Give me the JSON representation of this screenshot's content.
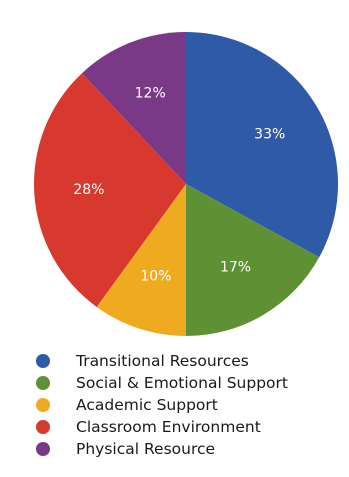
{
  "chart_data": {
    "type": "pie",
    "title": "",
    "slices": [
      {
        "label": "Transitional Resources",
        "value": 33,
        "display": "33%",
        "color": "#2f5aa8"
      },
      {
        "label": "Social & Emotional Support",
        "value": 17,
        "display": "17%",
        "color": "#5e9134"
      },
      {
        "label": "Academic Support",
        "value": 10,
        "display": "10%",
        "color": "#efab1f"
      },
      {
        "label": "Classroom Environment",
        "value": 28,
        "display": "28%",
        "color": "#d8392f"
      },
      {
        "label": "Physical Resource",
        "value": 12,
        "display": "12%",
        "color": "#7a3987"
      }
    ],
    "legend_position": "bottom"
  }
}
